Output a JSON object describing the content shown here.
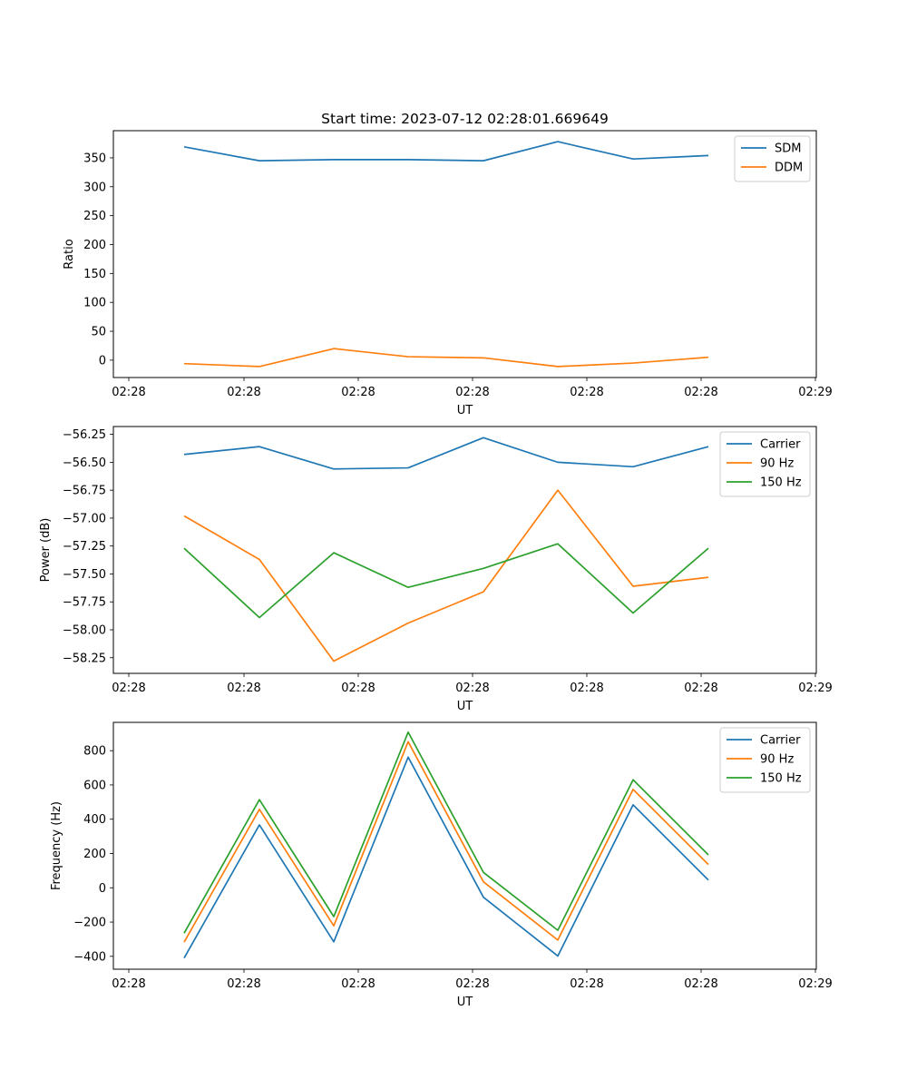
{
  "colors": {
    "blue": "#1f77b4",
    "orange": "#ff7f0e",
    "green": "#2ca02c"
  },
  "chart_data": [
    {
      "type": "line",
      "title": "Start time: 2023-07-12 02:28:01.669649",
      "xlabel": "UT",
      "ylabel": "Ratio",
      "x_tick_labels": [
        "02:28",
        "02:28",
        "02:28",
        "02:28",
        "02:28",
        "02:28",
        "02:28",
        "02:29"
      ],
      "y_ticks": [
        0,
        50,
        100,
        150,
        200,
        250,
        300,
        350
      ],
      "y_tick_labels": [
        "0",
        "50",
        "100",
        "150",
        "200",
        "250",
        "300",
        "350"
      ],
      "ylim": [
        -30,
        397
      ],
      "x": [
        1,
        2,
        3,
        4,
        5,
        6,
        7,
        8
      ],
      "series": [
        {
          "name": "SDM",
          "color": "#1f77b4",
          "values": [
            369,
            345,
            347,
            347,
            345,
            378,
            348,
            354
          ]
        },
        {
          "name": "DDM",
          "color": "#ff7f0e",
          "values": [
            -6,
            -11,
            20,
            6,
            4,
            -11,
            -5,
            5
          ]
        }
      ]
    },
    {
      "type": "line",
      "xlabel": "UT",
      "ylabel": "Power (dB)",
      "x_tick_labels": [
        "02:28",
        "02:28",
        "02:28",
        "02:28",
        "02:28",
        "02:28",
        "02:28",
        "02:29"
      ],
      "y_ticks": [
        -58.25,
        -58.0,
        -57.75,
        -57.5,
        -57.25,
        -57.0,
        -56.75,
        -56.5,
        -56.25
      ],
      "y_tick_labels": [
        "−58.25",
        "−58.00",
        "−57.75",
        "−57.50",
        "−57.25",
        "−57.00",
        "−56.75",
        "−56.50",
        "−56.25"
      ],
      "ylim": [
        -58.39,
        -56.18
      ],
      "x": [
        1,
        2,
        3,
        4,
        5,
        6,
        7,
        8
      ],
      "series": [
        {
          "name": "Carrier",
          "color": "#1f77b4",
          "values": [
            -56.43,
            -56.36,
            -56.56,
            -56.55,
            -56.28,
            -56.5,
            -56.54,
            -56.36
          ]
        },
        {
          "name": "90 Hz",
          "color": "#ff7f0e",
          "values": [
            -56.98,
            -57.37,
            -58.28,
            -57.94,
            -57.66,
            -56.75,
            -57.61,
            -57.53
          ]
        },
        {
          "name": "150 Hz",
          "color": "#2ca02c",
          "values": [
            -57.27,
            -57.89,
            -57.31,
            -57.62,
            -57.45,
            -57.23,
            -57.85,
            -57.27
          ]
        }
      ]
    },
    {
      "type": "line",
      "xlabel": "UT",
      "ylabel": "Frequency (Hz)",
      "x_tick_labels": [
        "02:28",
        "02:28",
        "02:28",
        "02:28",
        "02:28",
        "02:28",
        "02:28",
        "02:29"
      ],
      "y_ticks": [
        -400,
        -200,
        0,
        200,
        400,
        600,
        800
      ],
      "y_tick_labels": [
        "−400",
        "−200",
        "0",
        "200",
        "400",
        "600",
        "800"
      ],
      "ylim": [
        -475,
        965
      ],
      "x": [
        1,
        2,
        3,
        4,
        5,
        6,
        7,
        8
      ],
      "series": [
        {
          "name": "Carrier",
          "color": "#1f77b4",
          "values": [
            -410,
            367,
            -315,
            762,
            -55,
            -398,
            484,
            45
          ]
        },
        {
          "name": "90 Hz",
          "color": "#ff7f0e",
          "values": [
            -317,
            458,
            -222,
            852,
            35,
            -305,
            574,
            136
          ]
        },
        {
          "name": "150 Hz",
          "color": "#2ca02c",
          "values": [
            -265,
            514,
            -168,
            908,
            90,
            -248,
            630,
            192
          ]
        }
      ]
    }
  ]
}
